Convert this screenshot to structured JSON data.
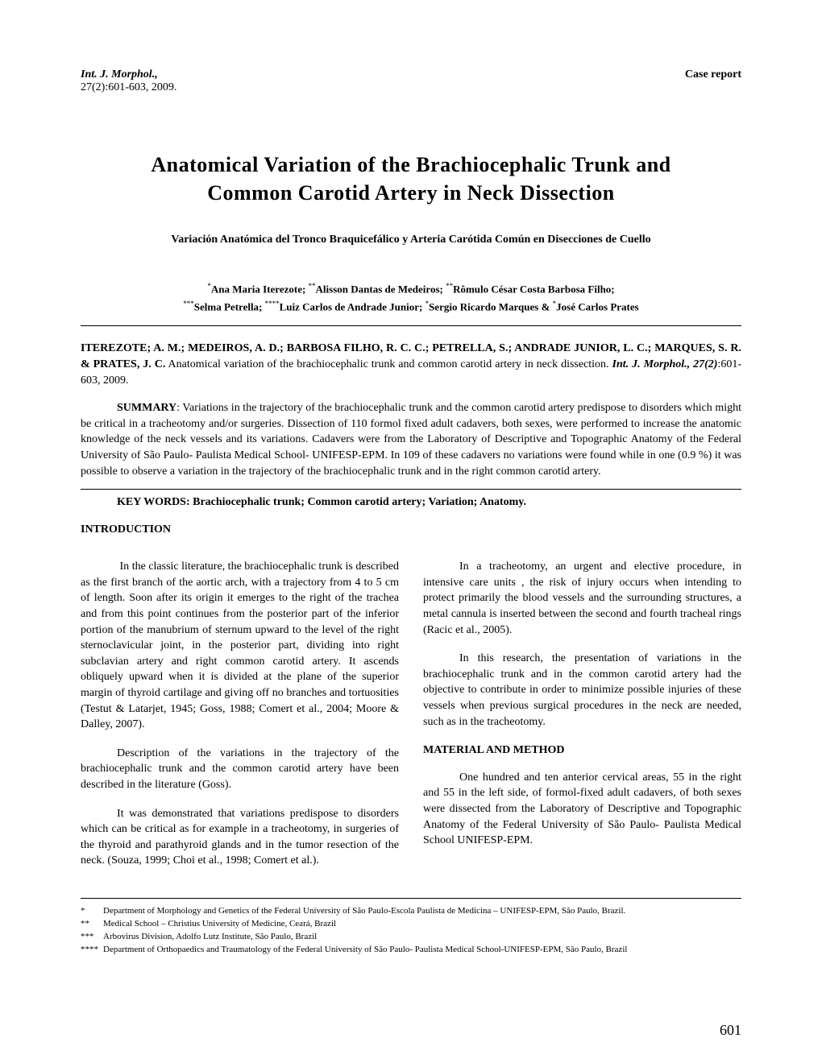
{
  "header": {
    "journal_line1": "Int. J. Morphol.,",
    "journal_line2": "27(2):601-603, 2009.",
    "case_report": "Case report"
  },
  "title_line1": "Anatomical  Variation  of  the  Brachiocephalic  Trunk  and",
  "title_line2": "Common  Carotid  Artery  in  Neck  Dissection",
  "subtitle": "Variación  Anatómica  del  Tronco  Braquicefálico  y  Arteria  Carótida  Común  en  Disecciones  de Cuello",
  "authors_html": "*Ana Maria Iterezote; **Alisson Dantas de Medeiros; **Rômulo César  Costa Barbosa Filho; ***Selma Petrella; ****Luiz Carlos de Andrade Junior; *Sergio Ricardo Marques & *José Carlos Prates",
  "citation": {
    "authors_caps": "ITEREZOTE; A. M.; MEDEIROS, A. D.; BARBOSA FILHO, R. C. C.; PETRELLA, S.; ANDRADE JUNIOR, L. C.; MARQUES, S. R. & PRATES, J. C.",
    "title": " Anatomical variation of the brachiocephalic trunk and common carotid artery in neck dissection. ",
    "journal": "Int. J. Morphol., 27(2)",
    "tail": ":601-603, 2009."
  },
  "summary": {
    "label": "SUMMARY",
    "text": ": Variations in the trajectory of the brachiocephalic trunk and the common carotid artery predispose to disorders which might be critical in a tracheotomy and/or surgeries. Dissection of 110 formol fixed adult cadavers, both sexes, were performed to increase the anatomic knowledge of the neck vessels and its variations. Cadavers were from the Laboratory of Descriptive and Topographic Anatomy of the Federal University of São Paulo- Paulista Medical School- UNIFESP-EPM. In 109 of these cadavers no variations were found while in one (0.9 %) it was possible to observe a variation in the trajectory of the brachiocephalic trunk and in the right common carotid artery."
  },
  "keywords": "KEY WORDS: Brachiocephalic trunk; Common carotid artery; Variation; Anatomy.",
  "sections": {
    "introduction": "INTRODUCTION",
    "material": "MATERIAL AND METHOD"
  },
  "left_paras": [
    " In the classic literature, the brachiocephalic trunk is described as the first branch of the aortic arch, with a trajectory from 4 to 5 cm of length. Soon after its origin it emerges to the right of the trachea and from this point continues from the posterior part of the inferior portion of the manubrium of sternum upward to the level of the right sternoclavicular joint, in the posterior part, dividing into right subclavian artery and right common carotid artery. It ascends obliquely upward when it is divided at the plane of the superior margin of thyroid cartilage and giving off no branches and  tortuosities (Testut & Latarjet, 1945; Goss, 1988; Comert et al., 2004; Moore & Dalley, 2007).",
    "Description of the variations in the trajectory of the brachiocephalic trunk and the common carotid artery have been described in the literature (Goss).",
    "It was demonstrated that variations predispose to disorders which can be critical as for example in a tracheotomy, in surgeries of the thyroid and parathyroid glands and in the tumor resection of the neck. (Souza, 1999; Choi et al., 1998; Comert et al.)."
  ],
  "right_paras": [
    "In a tracheotomy, an urgent and elective procedure, in intensive care units , the risk of injury occurs when intending to protect primarily the blood vessels and the surrounding structures, a metal cannula is inserted between the second and fourth tracheal rings (Racic et al., 2005).",
    "In this research, the presentation of variations in  the brachiocephalic trunk and in the common carotid artery had the objective to contribute in order to minimize possible injuries of these vessels when previous surgical procedures in the neck are needed, such as in the tracheotomy.",
    "One hundred and ten anterior cervical areas, 55 in the right and 55 in the left side, of formol-fixed adult cadavers, of both sexes were dissected from the Laboratory of Descriptive and Topographic Anatomy of the Federal University of São Paulo- Paulista Medical School UNIFESP-EPM."
  ],
  "footnotes": [
    {
      "marker": "*",
      "text": "Department of Morphology and Genetics of the Federal University of São Paulo-Escola Paulista de Medicina – UNIFESP-EPM, São Paulo, Brazil."
    },
    {
      "marker": "**",
      "text": "Medical School – Christius University of Medicine, Ceará, Brazil"
    },
    {
      "marker": "***",
      "text": "Arbovirus Division, Adolfo Lutz Institute, São Paulo, Brazil"
    },
    {
      "marker": "****",
      "text": "Department of Orthopaedics and Traumatology of the Federal University of São Paulo- Paulista Medical School-UNIFESP-EPM, São Paulo, Brazil"
    }
  ],
  "page_number": "601"
}
